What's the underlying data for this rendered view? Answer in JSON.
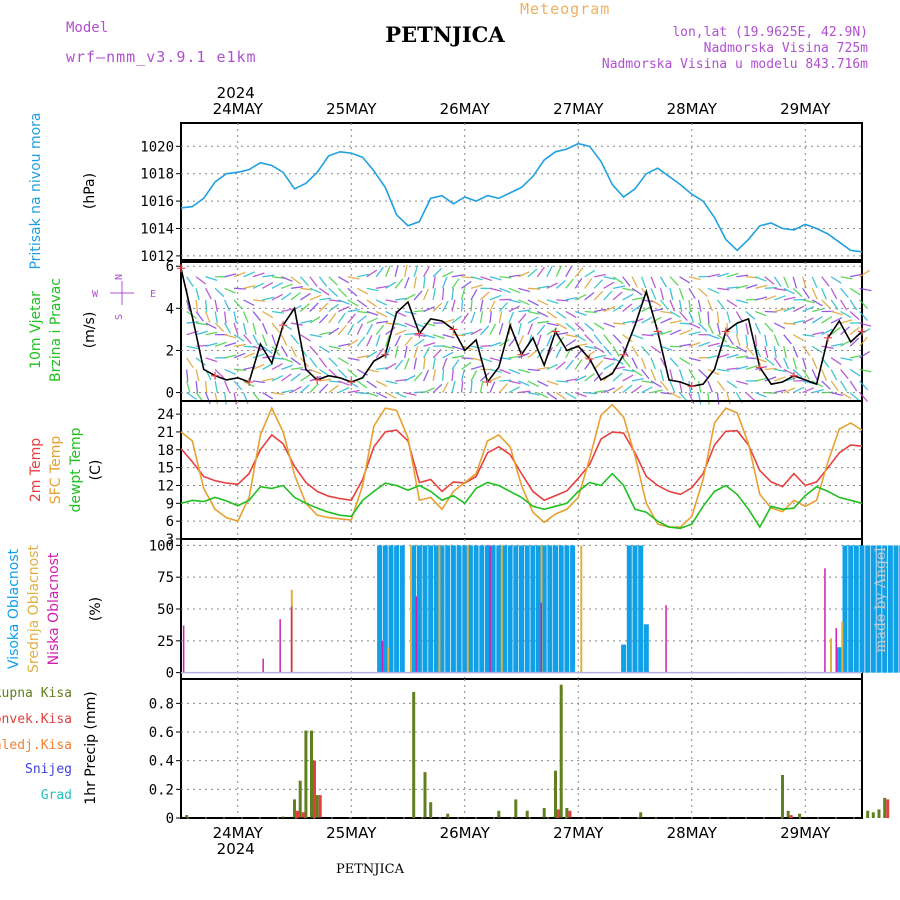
{
  "header": {
    "model_label": "Model",
    "model_name": "wrf—nmm_v3.9.1 e1km",
    "title": "PETNJICA",
    "meteogram_label": "Meteogram",
    "lonlat": "lon,lat (19.9625E, 42.9N)",
    "elevation": "Nadmorska Visina 725m",
    "model_elevation": "Nadmorska Visina u modelu 843.716m"
  },
  "footer": {
    "station": "PETNJICA",
    "watermark": "made by Angel"
  },
  "colors": {
    "pressure": "#20a0e0",
    "temp2m": "#e84040",
    "sfctemp": "#e8a030",
    "dewpt": "#20c020",
    "high_cloud": "#10a0e8",
    "mid_cloud": "#e0b040",
    "low_cloud": "#d020b0",
    "precip_total": "#608020",
    "precip_conv": "#e04040",
    "precip_grid": "#f08030",
    "snow": "#4040e0",
    "grad": "#20c0c0",
    "wind_speed": "#000000",
    "title_purple": "#b050d0"
  },
  "chart_data": [
    {
      "type": "line",
      "title": "Pritisak na nivou mora",
      "ylabel": "(hPa)",
      "ylim": [
        1011.7,
        1021.7
      ],
      "yticks": [
        1012,
        1014,
        1016,
        1018,
        1020
      ],
      "top_year": "2024",
      "x_day_labels": [
        "24MAY",
        "25MAY",
        "26MAY",
        "27MAY",
        "28MAY",
        "29MAY"
      ],
      "x_unit": "days from 24MAY 00UTC",
      "xlim": [
        -0.5,
        5.5
      ],
      "series": [
        {
          "name": "pressure",
          "x": [
            -0.5,
            -0.4,
            -0.3,
            -0.2,
            -0.1,
            0.0,
            0.1,
            0.2,
            0.3,
            0.4,
            0.5,
            0.6,
            0.7,
            0.8,
            0.9,
            1.0,
            1.1,
            1.2,
            1.3,
            1.4,
            1.5,
            1.6,
            1.7,
            1.8,
            1.9,
            2.0,
            2.1,
            2.2,
            2.3,
            2.4,
            2.5,
            2.6,
            2.7,
            2.8,
            2.9,
            3.0,
            3.1,
            3.2,
            3.3,
            3.4,
            3.5,
            3.6,
            3.7,
            3.8,
            3.9,
            4.0,
            4.1,
            4.2,
            4.3,
            4.4,
            4.5,
            4.6,
            4.7,
            4.8,
            4.9,
            5.0,
            5.1,
            5.2,
            5.3,
            5.4,
            5.5
          ],
          "values": [
            1015.5,
            1015.6,
            1016.2,
            1017.4,
            1018.0,
            1018.1,
            1018.3,
            1018.8,
            1018.6,
            1018.1,
            1016.9,
            1017.3,
            1018.1,
            1019.3,
            1019.6,
            1019.5,
            1019.2,
            1018.2,
            1017.0,
            1015.0,
            1014.2,
            1014.5,
            1016.2,
            1016.4,
            1015.8,
            1016.3,
            1016.0,
            1016.4,
            1016.2,
            1016.6,
            1017.0,
            1017.8,
            1019.0,
            1019.6,
            1019.8,
            1020.2,
            1020.0,
            1018.9,
            1017.2,
            1016.3,
            1016.9,
            1018.0,
            1018.4,
            1017.8,
            1017.2,
            1016.5,
            1016.0,
            1014.8,
            1013.2,
            1012.4,
            1013.2,
            1014.2,
            1014.4,
            1014.0,
            1013.9,
            1014.3,
            1014.0,
            1013.6,
            1013.0,
            1012.4,
            1012.3
          ]
        }
      ]
    },
    {
      "type": "line",
      "title": "10m Vjetar Brzina i Pravac",
      "ylabel": "(m/s)",
      "ylim": [
        -0.4,
        6.2
      ],
      "yticks": [
        0,
        2,
        4,
        6
      ],
      "compass": {
        "n": "N",
        "s": "S",
        "w": "W",
        "e": "E"
      },
      "series": [
        {
          "name": "wind speed",
          "x": [
            -0.5,
            -0.4,
            -0.3,
            -0.2,
            -0.1,
            0.0,
            0.1,
            0.2,
            0.3,
            0.4,
            0.5,
            0.6,
            0.7,
            0.8,
            0.9,
            1.0,
            1.1,
            1.2,
            1.3,
            1.4,
            1.5,
            1.6,
            1.7,
            1.8,
            1.9,
            2.0,
            2.1,
            2.2,
            2.3,
            2.4,
            2.5,
            2.6,
            2.7,
            2.8,
            2.9,
            3.0,
            3.1,
            3.2,
            3.3,
            3.4,
            3.5,
            3.6,
            3.7,
            3.8,
            3.9,
            4.0,
            4.1,
            4.2,
            4.3,
            4.4,
            4.5,
            4.6,
            4.7,
            4.8,
            4.9,
            5.0,
            5.1,
            5.2,
            5.3,
            5.4,
            5.5
          ],
          "values": [
            5.9,
            3.6,
            1.1,
            0.8,
            0.6,
            0.7,
            0.5,
            2.3,
            1.4,
            3.2,
            4.0,
            1.1,
            0.6,
            0.8,
            0.7,
            0.5,
            0.7,
            1.5,
            1.8,
            3.8,
            4.3,
            2.8,
            3.5,
            3.4,
            3.0,
            2.0,
            2.5,
            0.5,
            1.2,
            3.2,
            1.8,
            2.6,
            1.3,
            2.9,
            2.0,
            2.2,
            1.6,
            0.6,
            0.9,
            1.8,
            3.2,
            4.8,
            2.9,
            0.6,
            0.5,
            0.3,
            0.4,
            1.1,
            2.9,
            3.3,
            3.5,
            1.2,
            0.4,
            0.5,
            0.8,
            0.6,
            0.4,
            2.6,
            3.4,
            2.4,
            2.9
          ]
        }
      ]
    },
    {
      "type": "line",
      "title": "2m Temp / SFC Temp / dewpt Temp",
      "ylabel": "(C)",
      "ylim": [
        3,
        26.2
      ],
      "yticks": [
        3,
        6,
        9,
        12,
        15,
        18,
        21,
        24
      ],
      "series": [
        {
          "name": "2m Temp",
          "x": [
            -0.5,
            -0.4,
            -0.3,
            -0.2,
            -0.1,
            0.0,
            0.1,
            0.2,
            0.3,
            0.4,
            0.5,
            0.6,
            0.7,
            0.8,
            0.9,
            1.0,
            1.1,
            1.2,
            1.3,
            1.4,
            1.5,
            1.6,
            1.7,
            1.8,
            1.9,
            2.0,
            2.1,
            2.2,
            2.3,
            2.4,
            2.5,
            2.6,
            2.7,
            2.8,
            2.9,
            3.0,
            3.1,
            3.2,
            3.3,
            3.4,
            3.5,
            3.6,
            3.7,
            3.8,
            3.9,
            4.0,
            4.1,
            4.2,
            4.3,
            4.4,
            4.5,
            4.6,
            4.7,
            4.8,
            4.9,
            5.0,
            5.1,
            5.2,
            5.3,
            5.4,
            5.5
          ],
          "values": [
            18.2,
            16.0,
            13.5,
            12.8,
            12.4,
            12.2,
            14.0,
            18.0,
            20.5,
            19.0,
            15.2,
            12.5,
            11.0,
            10.2,
            9.8,
            9.5,
            13.0,
            18.5,
            21.0,
            21.3,
            19.5,
            12.5,
            13.0,
            11.0,
            12.6,
            12.4,
            13.5,
            17.5,
            18.5,
            17.2,
            14.0,
            11.0,
            9.5,
            10.3,
            11.1,
            13.2,
            15.5,
            19.8,
            21.0,
            20.8,
            17.5,
            13.5,
            12.0,
            11.0,
            10.5,
            11.6,
            14.0,
            18.8,
            21.1,
            21.2,
            18.8,
            14.5,
            12.6,
            11.8,
            14.0,
            12.0,
            12.6,
            15.0,
            17.5,
            18.8,
            18.6
          ]
        },
        {
          "name": "SFC Temp",
          "x": [
            -0.5,
            -0.4,
            -0.3,
            -0.2,
            -0.1,
            0.0,
            0.1,
            0.2,
            0.3,
            0.4,
            0.5,
            0.6,
            0.7,
            0.8,
            0.9,
            1.0,
            1.1,
            1.2,
            1.3,
            1.4,
            1.5,
            1.6,
            1.7,
            1.8,
            1.9,
            2.0,
            2.1,
            2.2,
            2.3,
            2.4,
            2.5,
            2.6,
            2.7,
            2.8,
            2.9,
            3.0,
            3.1,
            3.2,
            3.3,
            3.4,
            3.5,
            3.6,
            3.7,
            3.8,
            3.9,
            4.0,
            4.1,
            4.2,
            4.3,
            4.4,
            4.5,
            4.6,
            4.7,
            4.8,
            4.9,
            5.0,
            5.1,
            5.2,
            5.3,
            5.4,
            5.5
          ],
          "values": [
            21.0,
            19.5,
            11.5,
            8.0,
            6.6,
            6.0,
            10.0,
            20.5,
            25.0,
            21.0,
            13.8,
            9.0,
            7.0,
            6.6,
            6.4,
            6.2,
            12.0,
            22.0,
            25.0,
            24.6,
            20.0,
            9.5,
            10.0,
            8.0,
            11.0,
            12.5,
            14.0,
            19.5,
            20.5,
            18.5,
            12.0,
            7.5,
            5.8,
            7.2,
            8.0,
            10.0,
            16.5,
            23.8,
            25.6,
            23.5,
            17.0,
            9.0,
            5.5,
            5.0,
            5.0,
            6.8,
            13.0,
            22.5,
            25.0,
            24.2,
            19.0,
            10.5,
            8.2,
            7.6,
            9.5,
            8.5,
            9.5,
            16.0,
            21.5,
            22.5,
            21.3
          ]
        },
        {
          "name": "dewpt Temp",
          "x": [
            -0.5,
            -0.4,
            -0.3,
            -0.2,
            -0.1,
            0.0,
            0.1,
            0.2,
            0.3,
            0.4,
            0.5,
            0.6,
            0.7,
            0.8,
            0.9,
            1.0,
            1.1,
            1.2,
            1.3,
            1.4,
            1.5,
            1.6,
            1.7,
            1.8,
            1.9,
            2.0,
            2.1,
            2.2,
            2.3,
            2.4,
            2.5,
            2.6,
            2.7,
            2.8,
            2.9,
            3.0,
            3.1,
            3.2,
            3.3,
            3.4,
            3.5,
            3.6,
            3.7,
            3.8,
            3.9,
            4.0,
            4.1,
            4.2,
            4.3,
            4.4,
            4.5,
            4.6,
            4.7,
            4.8,
            4.9,
            5.0,
            5.1,
            5.2,
            5.3,
            5.4,
            5.5
          ],
          "values": [
            9.0,
            9.5,
            9.3,
            10.0,
            9.4,
            8.6,
            9.5,
            11.8,
            11.5,
            12.0,
            10.0,
            9.0,
            8.2,
            7.5,
            7.0,
            6.8,
            9.5,
            11.0,
            12.4,
            12.0,
            11.2,
            12.0,
            11.0,
            9.5,
            10.3,
            9.0,
            11.5,
            12.5,
            12.0,
            11.0,
            10.0,
            8.5,
            8.0,
            8.5,
            9.0,
            11.0,
            12.5,
            12.0,
            14.0,
            12.0,
            8.0,
            7.5,
            6.0,
            5.0,
            4.8,
            5.5,
            8.5,
            11.0,
            12.0,
            10.5,
            8.0,
            5.0,
            8.5,
            8.0,
            8.2,
            10.3,
            11.8,
            11.0,
            10.0,
            9.5,
            9.0
          ]
        }
      ]
    },
    {
      "type": "bar",
      "title": "Visoka / Srednja / Niska Oblacnost",
      "ylabel": "(%)",
      "ylim": [
        -5,
        105
      ],
      "yticks": [
        0,
        25,
        50,
        75,
        100
      ],
      "series": [
        {
          "name": "Visoka Oblacnost",
          "x": [
            1.25,
            1.3,
            1.35,
            1.4,
            1.45,
            1.55,
            1.6,
            1.65,
            1.7,
            1.75,
            1.8,
            1.85,
            1.9,
            1.95,
            2.0,
            2.05,
            2.1,
            2.15,
            2.2,
            2.25,
            2.3,
            2.35,
            2.4,
            2.45,
            2.5,
            2.55,
            2.6,
            2.65,
            2.7,
            2.75,
            2.8,
            2.85,
            2.9,
            2.95,
            3.4,
            3.45,
            3.5,
            3.55,
            3.6,
            5.3,
            5.35,
            5.4,
            5.45,
            5.5,
            5.55,
            5.6,
            5.65,
            5.7,
            5.75,
            5.8,
            5.85
          ],
          "values": [
            100,
            100,
            100,
            100,
            100,
            100,
            100,
            100,
            100,
            100,
            100,
            100,
            100,
            100,
            100,
            100,
            100,
            100,
            100,
            100,
            100,
            100,
            100,
            100,
            100,
            100,
            100,
            100,
            100,
            100,
            100,
            100,
            100,
            100,
            22,
            100,
            100,
            100,
            38,
            20,
            100,
            100,
            100,
            100,
            100,
            100,
            100,
            100,
            100,
            100,
            100
          ]
        },
        {
          "name": "Srednja Oblacnost",
          "x": [
            0.45,
            1.3,
            1.5,
            1.75,
            2.0,
            2.3,
            2.65,
            3.0,
            5.2,
            5.3,
            5.9
          ],
          "values": [
            65,
            20,
            100,
            100,
            100,
            100,
            100,
            100,
            27,
            40,
            86
          ]
        },
        {
          "name": "Niska Oblacnost",
          "x": [
            -0.45,
            0.25,
            0.4,
            0.5,
            1.3,
            1.6,
            2.25,
            2.7,
            3.8,
            5.2,
            5.3,
            6.1
          ],
          "values": [
            37,
            11,
            42,
            52,
            25,
            60,
            100,
            55,
            53,
            82,
            35,
            43
          ]
        }
      ]
    },
    {
      "type": "bar",
      "title": "1hr Precip",
      "ylabel": "1hr Precip (mm)",
      "ylim": [
        0,
        0.97
      ],
      "yticks": [
        0,
        0.2,
        0.4,
        0.6,
        0.8
      ],
      "legend": [
        "Ukupna Kisa",
        "Konvek.Kisa",
        "Zaledj.Kisa",
        "Snijeg",
        "Grad"
      ],
      "series": [
        {
          "name": "Ukupna Kisa",
          "x": [
            -0.45,
            0.4,
            0.5,
            0.55,
            0.6,
            0.65,
            0.7,
            1.55,
            1.65,
            1.7,
            1.85,
            2.3,
            2.45,
            2.55,
            2.7,
            2.8,
            2.85,
            2.9,
            3.55,
            4.8,
            4.85,
            4.95,
            5.55,
            5.6,
            5.65,
            5.7
          ],
          "values": [
            0.02,
            0.01,
            0.13,
            0.26,
            0.61,
            0.61,
            0.16,
            0.88,
            0.32,
            0.11,
            0.03,
            0.05,
            0.13,
            0.05,
            0.07,
            0.33,
            0.93,
            0.07,
            0.04,
            0.3,
            0.05,
            0.03,
            0.05,
            0.04,
            0.06,
            0.14
          ]
        },
        {
          "name": "Konvek.Kisa",
          "x": [
            0.5,
            0.55,
            0.65,
            0.7,
            2.8,
            2.9,
            4.85,
            5.7
          ],
          "values": [
            0.05,
            0.04,
            0.4,
            0.16,
            0.06,
            0.05,
            0.02,
            0.13
          ]
        },
        {
          "name": "Zaledj.Kisa",
          "values": []
        },
        {
          "name": "Snijeg",
          "values": []
        },
        {
          "name": "Grad",
          "values": []
        }
      ]
    }
  ],
  "panel_titles": {
    "pressure": [
      "Pritisak na nivou mora"
    ],
    "wind": [
      "10m Vjetar",
      "Brzina i Pravac"
    ],
    "temp": [
      "2m Temp",
      "SFC Temp",
      "dewpt Temp"
    ],
    "cloud": [
      "Visoka Oblacnost",
      "Srednja Oblacnost",
      "Niska Oblacnost"
    ]
  }
}
